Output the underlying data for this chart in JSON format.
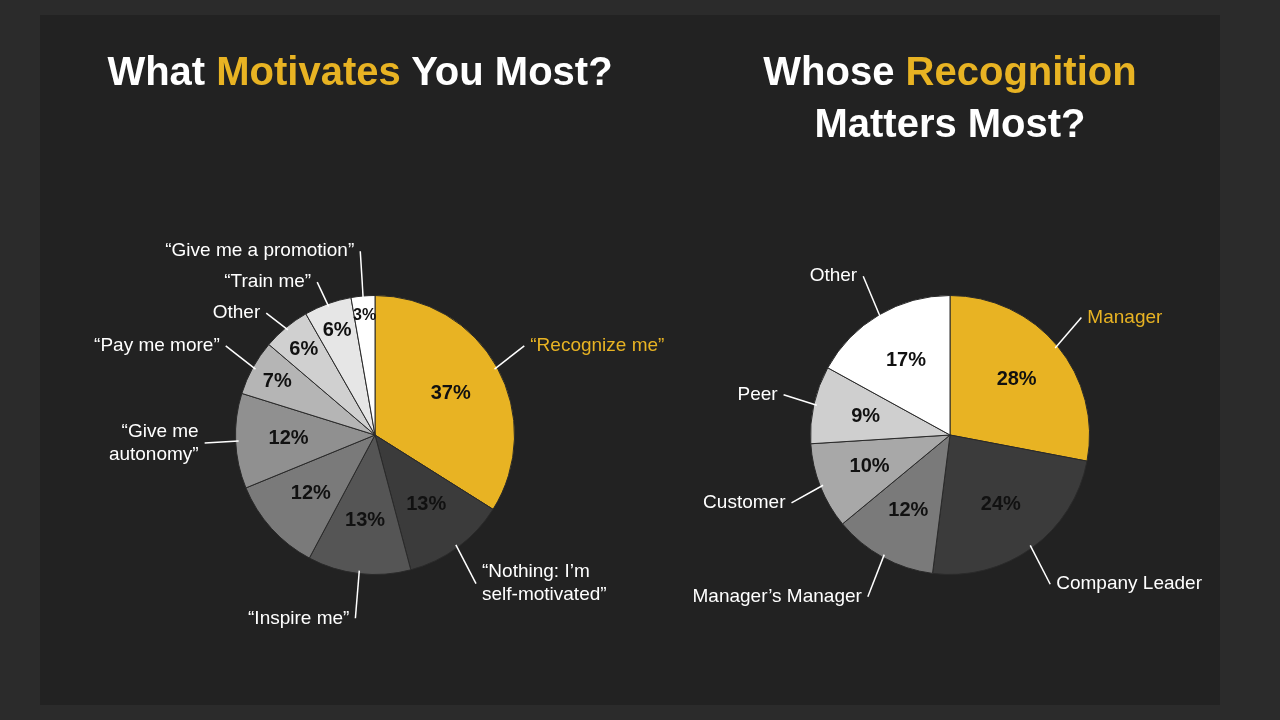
{
  "chart_data": [
    {
      "type": "pie",
      "title": "What Motivates You Most?",
      "categories": [
        "“Recognize me”",
        "“Nothing: I’m self-motivated”",
        "“Inspire me”",
        null,
        "“Give me autonomy”",
        "“Pay me more”",
        "Other",
        "“Train me”",
        "“Give me a promotion”"
      ],
      "values": [
        37,
        13,
        13,
        12,
        12,
        7,
        6,
        6,
        3
      ],
      "value_labels": [
        "37%",
        "13%",
        "13%",
        "12%",
        "12%",
        "7%",
        "6%",
        "6%",
        "3%"
      ],
      "colors": [
        "#e8b323",
        "#3b3b3b",
        "#555555",
        "#7a7a7a",
        "#909090",
        "#b5b5b5",
        "#d0d0d0",
        "#e6e6e6",
        "#ffffff"
      ]
    },
    {
      "type": "pie",
      "title": "Whose Recognition Matters Most?",
      "categories": [
        "Manager",
        "Company Leader",
        "Manager’s Manager",
        "Customer",
        "Peer",
        "Other"
      ],
      "values": [
        28,
        24,
        12,
        10,
        9,
        17
      ],
      "value_labels": [
        "28%",
        "24%",
        "12%",
        "10%",
        "9%",
        "17%"
      ],
      "colors": [
        "#e8b323",
        "#3b3b3b",
        "#7a7a7a",
        "#a8a8a8",
        "#cfcfcf",
        "#ffffff"
      ]
    }
  ]
}
